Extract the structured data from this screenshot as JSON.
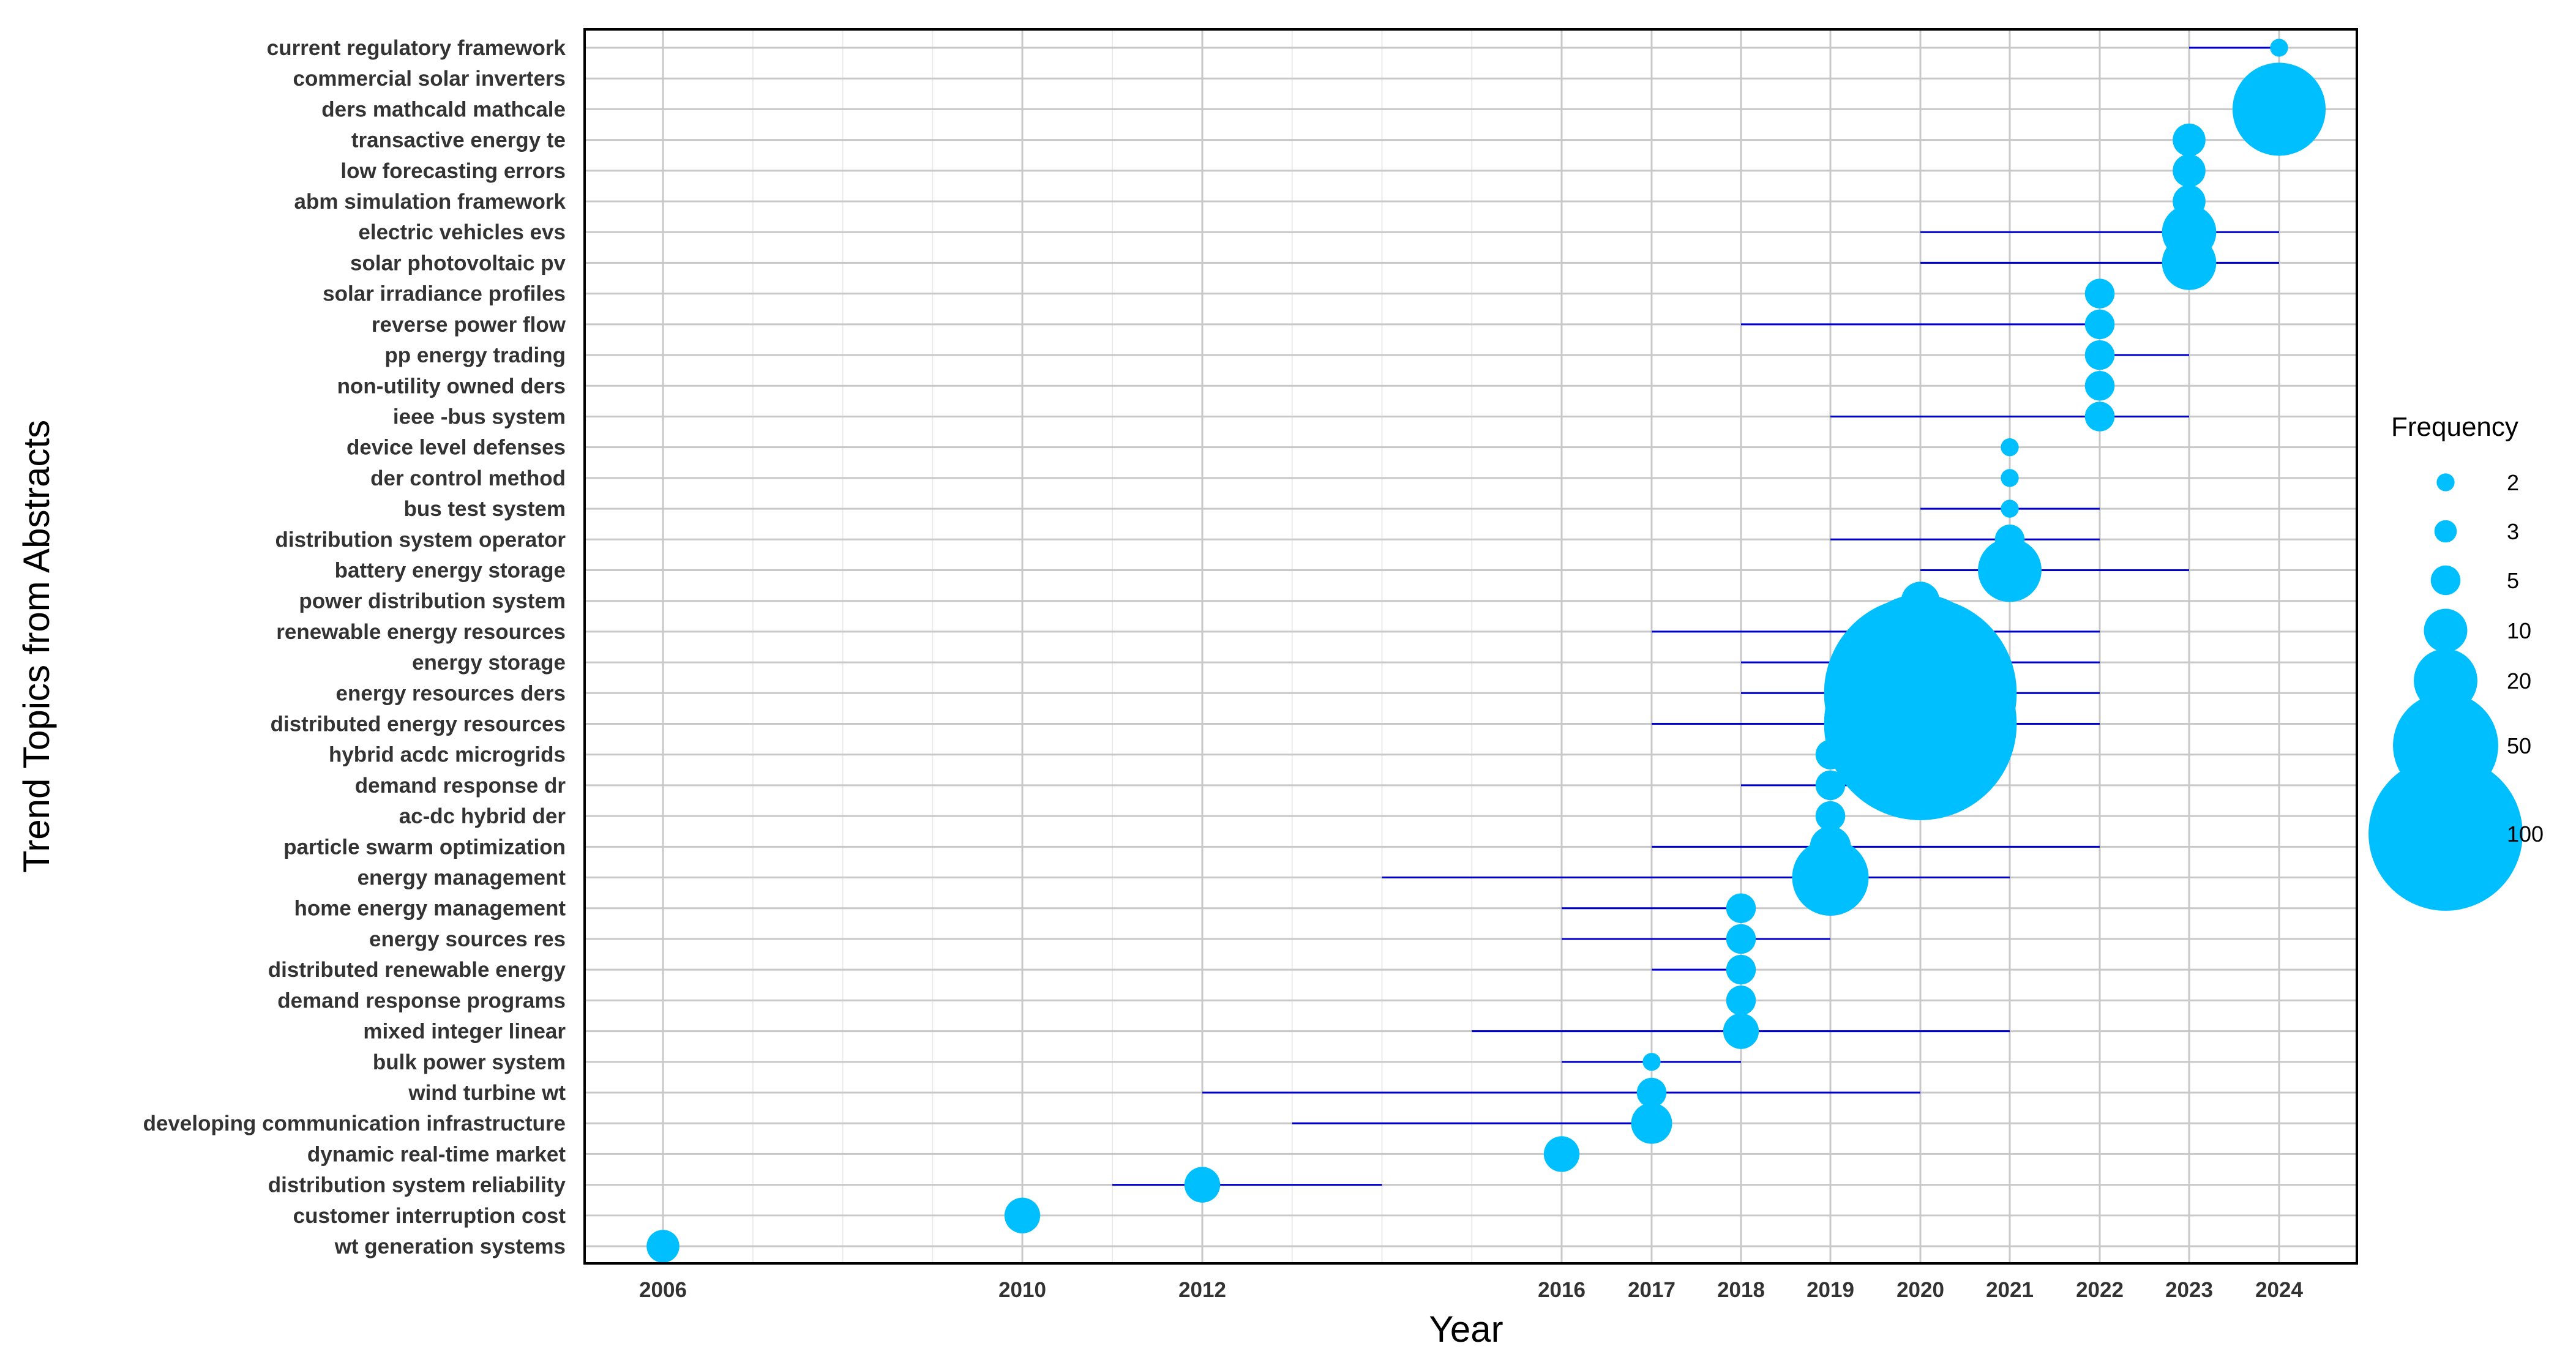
{
  "chart_data": {
    "type": "scatter",
    "xlabel": "Year",
    "ylabel": "Trend Topics from Abstracts",
    "x_ticks": [
      2006,
      2010,
      2012,
      2016,
      2017,
      2018,
      2019,
      2020,
      2021,
      2022,
      2023,
      2024
    ],
    "xlim": [
      2005,
      2024.9
    ],
    "grid": true,
    "legend": {
      "title": "Frequency",
      "position": "right",
      "values": [
        2,
        3,
        5,
        10,
        20,
        50,
        100
      ]
    },
    "point_color": "#00BFFF",
    "line_color": "#0000CD",
    "topics": [
      {
        "term": "current regulatory framework",
        "year": 2024,
        "start": 2023,
        "end": 2024,
        "freq": 2
      },
      {
        "term": "commercial solar inverters",
        "year": 2024,
        "start": 2024,
        "end": 2024,
        "freq": 2
      },
      {
        "term": "ders mathcald mathcale",
        "year": 2024,
        "start": 2024,
        "end": 2024,
        "freq": 40
      },
      {
        "term": "transactive energy te",
        "year": 2023,
        "start": 2023,
        "end": 2023,
        "freq": 6
      },
      {
        "term": "low forecasting errors",
        "year": 2023,
        "start": 2023,
        "end": 2023,
        "freq": 6
      },
      {
        "term": "abm simulation framework",
        "year": 2023,
        "start": 2023,
        "end": 2023,
        "freq": 6
      },
      {
        "term": "electric vehicles evs",
        "year": 2023,
        "start": 2020,
        "end": 2024,
        "freq": 15
      },
      {
        "term": "solar photovoltaic pv",
        "year": 2023,
        "start": 2020,
        "end": 2024,
        "freq": 15
      },
      {
        "term": "solar irradiance profiles",
        "year": 2022,
        "start": 2022,
        "end": 2022,
        "freq": 5
      },
      {
        "term": "reverse power flow",
        "year": 2022,
        "start": 2018,
        "end": 2022,
        "freq": 5
      },
      {
        "term": "pp energy trading",
        "year": 2022,
        "start": 2022,
        "end": 2023,
        "freq": 5
      },
      {
        "term": "non-utility owned ders",
        "year": 2022,
        "start": 2022,
        "end": 2022,
        "freq": 5
      },
      {
        "term": "ieee -bus system",
        "year": 2022,
        "start": 2019,
        "end": 2023,
        "freq": 5
      },
      {
        "term": "device level defenses",
        "year": 2021,
        "start": 2021,
        "end": 2021,
        "freq": 2
      },
      {
        "term": "der control method",
        "year": 2021,
        "start": 2021,
        "end": 2021,
        "freq": 2
      },
      {
        "term": "bus test system",
        "year": 2021,
        "start": 2020,
        "end": 2022,
        "freq": 2
      },
      {
        "term": "distribution system operator",
        "year": 2021,
        "start": 2019,
        "end": 2022,
        "freq": 5
      },
      {
        "term": "battery energy storage",
        "year": 2021,
        "start": 2020,
        "end": 2023,
        "freq": 20
      },
      {
        "term": "power distribution system",
        "year": 2020,
        "start": 2020,
        "end": 2020,
        "freq": 8
      },
      {
        "term": "renewable energy resources",
        "year": 2020,
        "start": 2017,
        "end": 2022,
        "freq": 30
      },
      {
        "term": "energy storage",
        "year": 2020,
        "start": 2018,
        "end": 2022,
        "freq": 80
      },
      {
        "term": "energy resources ders",
        "year": 2020,
        "start": 2018,
        "end": 2022,
        "freq": 150
      },
      {
        "term": "distributed energy resources",
        "year": 2020,
        "start": 2017,
        "end": 2022,
        "freq": 150
      },
      {
        "term": "hybrid acdc microgrids",
        "year": 2019,
        "start": 2019,
        "end": 2020,
        "freq": 5
      },
      {
        "term": "demand response dr",
        "year": 2019,
        "start": 2018,
        "end": 2020,
        "freq": 5
      },
      {
        "term": "ac-dc hybrid der",
        "year": 2019,
        "start": 2019,
        "end": 2019,
        "freq": 5
      },
      {
        "term": "particle swarm optimization",
        "year": 2019,
        "start": 2017,
        "end": 2022,
        "freq": 9
      },
      {
        "term": "energy management",
        "year": 2019,
        "start": 2014,
        "end": 2021,
        "freq": 28
      },
      {
        "term": "home energy management",
        "year": 2018,
        "start": 2016,
        "end": 2018,
        "freq": 5
      },
      {
        "term": "energy sources res",
        "year": 2018,
        "start": 2016,
        "end": 2019,
        "freq": 5
      },
      {
        "term": "distributed renewable energy",
        "year": 2018,
        "start": 2017,
        "end": 2018,
        "freq": 5
      },
      {
        "term": "demand response programs",
        "year": 2018,
        "start": 2018,
        "end": 2018,
        "freq": 5
      },
      {
        "term": "mixed integer linear",
        "year": 2018,
        "start": 2015,
        "end": 2021,
        "freq": 7
      },
      {
        "term": "bulk power system",
        "year": 2017,
        "start": 2016,
        "end": 2018,
        "freq": 2
      },
      {
        "term": "wind turbine wt",
        "year": 2017,
        "start": 2012,
        "end": 2020,
        "freq": 5
      },
      {
        "term": "developing communication infrastructure",
        "year": 2017,
        "start": 2013,
        "end": 2017,
        "freq": 9
      },
      {
        "term": "dynamic real-time market",
        "year": 2016,
        "start": 2016,
        "end": 2016,
        "freq": 7
      },
      {
        "term": "distribution system reliability",
        "year": 2012,
        "start": 2011,
        "end": 2014,
        "freq": 7
      },
      {
        "term": "customer interruption cost",
        "year": 2010,
        "start": 2010,
        "end": 2010,
        "freq": 7
      },
      {
        "term": "wt generation systems",
        "year": 2006,
        "start": 2006,
        "end": 2006,
        "freq": 6
      }
    ]
  }
}
